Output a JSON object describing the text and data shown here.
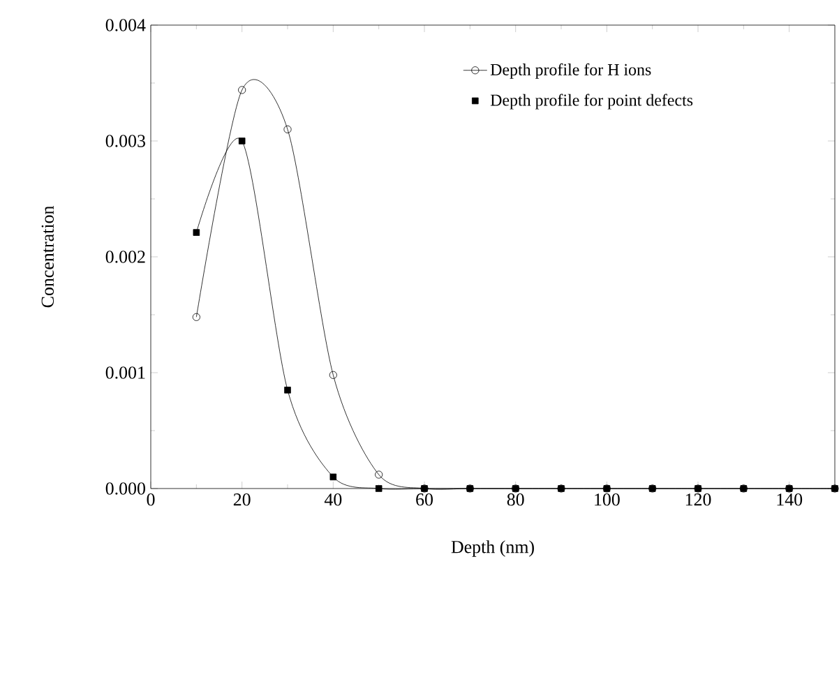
{
  "chart_data": {
    "type": "line",
    "xlabel": "Depth (nm)",
    "ylabel": "Concentration",
    "x": [
      10,
      20,
      30,
      40,
      50,
      60,
      70,
      80,
      90,
      100,
      110,
      120,
      130,
      140,
      150
    ],
    "series": [
      {
        "name": "Depth profile for H ions",
        "color": "#000000",
        "marker": "circle",
        "values": [
          0.00148,
          0.00344,
          0.0031,
          0.00098,
          0.00012,
          0,
          0,
          0,
          0,
          0,
          0,
          0,
          0,
          0,
          0
        ]
      },
      {
        "name": "Depth profile for point defects",
        "color": "#000000",
        "type": "scatter",
        "marker": "square",
        "values": [
          0.00221,
          0.003,
          0.00085,
          0.0001,
          0,
          0,
          0,
          0,
          0,
          0,
          0,
          0,
          0,
          0,
          0
        ]
      },
      {
        "color": "#000000",
        "marker": "none",
        "values": [
          0.00221,
          0.003,
          0.00085,
          0.0001,
          0,
          0,
          0,
          0,
          0,
          0,
          0,
          0,
          0,
          0,
          0
        ]
      }
    ],
    "xlim": [
      0,
      150
    ],
    "xticks": [
      0,
      20,
      40,
      60,
      80,
      100,
      120,
      140
    ],
    "ylim": [
      0,
      0.004
    ],
    "yticks": [
      {
        "value": 0,
        "label": "0.000"
      },
      {
        "value": 0.001,
        "label": "0.001"
      },
      {
        "value": 0.002,
        "label": "0.002"
      },
      {
        "value": 0.003,
        "label": "0.003"
      },
      {
        "value": 0.004,
        "label": "0.004"
      }
    ],
    "legend": "top right",
    "grid": false
  }
}
